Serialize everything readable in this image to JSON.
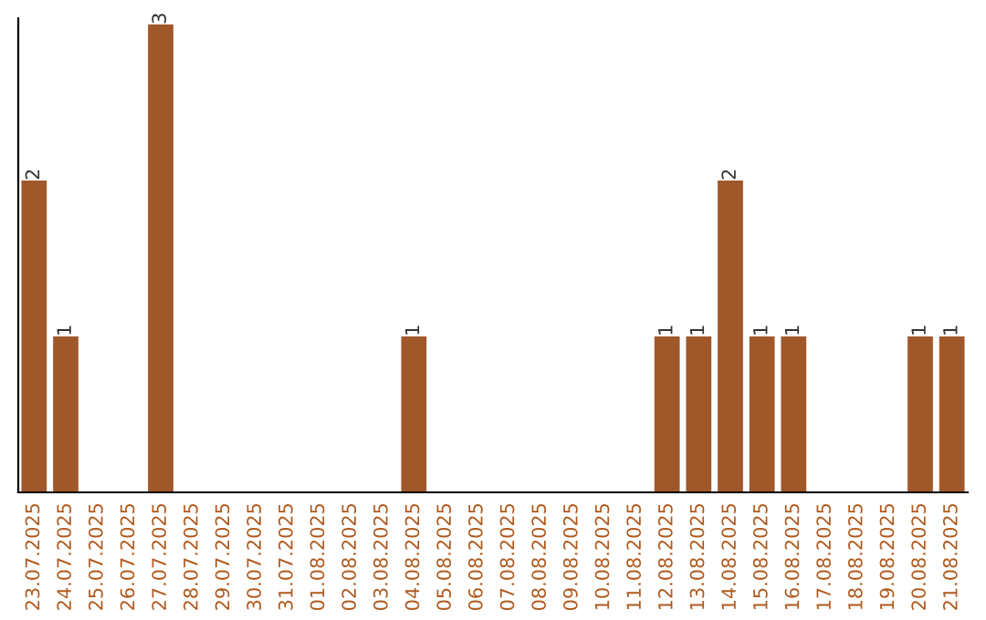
{
  "chart_data": {
    "type": "bar",
    "categories": [
      "23.07.2025",
      "24.07.2025",
      "25.07.2025",
      "26.07.2025",
      "27.07.2025",
      "28.07.2025",
      "29.07.2025",
      "30.07.2025",
      "31.07.2025",
      "01.08.2025",
      "02.08.2025",
      "03.08.2025",
      "04.08.2025",
      "05.08.2025",
      "06.08.2025",
      "07.08.2025",
      "08.08.2025",
      "09.08.2025",
      "10.08.2025",
      "11.08.2025",
      "12.08.2025",
      "13.08.2025",
      "14.08.2025",
      "15.08.2025",
      "16.08.2025",
      "17.08.2025",
      "18.08.2025",
      "19.08.2025",
      "20.08.2025",
      "21.08.2025"
    ],
    "values": [
      2,
      1,
      0,
      0,
      3,
      0,
      0,
      0,
      0,
      0,
      0,
      0,
      1,
      0,
      0,
      0,
      0,
      0,
      0,
      0,
      1,
      1,
      2,
      1,
      1,
      0,
      0,
      0,
      1,
      1
    ],
    "value_labels": [
      "2",
      "1",
      null,
      null,
      "3",
      null,
      null,
      null,
      null,
      null,
      null,
      null,
      "1",
      null,
      null,
      null,
      null,
      null,
      null,
      null,
      "1",
      "1",
      "2",
      "1",
      "1",
      null,
      null,
      null,
      "1",
      "1"
    ],
    "color": "#a0582a",
    "ylim": [
      0,
      3.04
    ],
    "tick_labels": "x",
    "grid": false,
    "legend": false
  }
}
